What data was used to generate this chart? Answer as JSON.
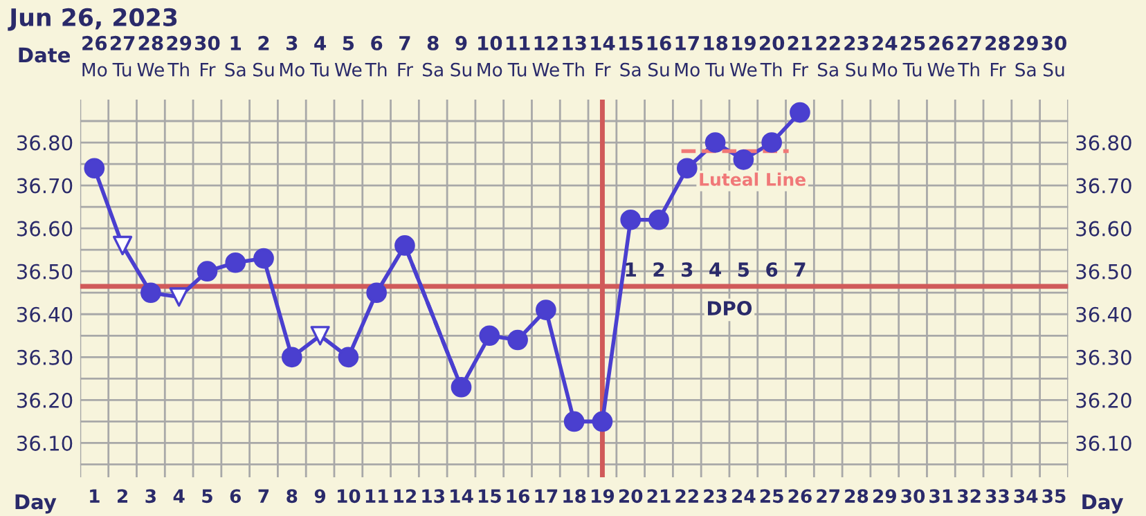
{
  "chart_data": {
    "type": "line",
    "title": "Jun 26, 2023",
    "xlabel": "Day",
    "x2label": "Date",
    "xlim": [
      0.5,
      35.5
    ],
    "xticks": [
      1,
      2,
      3,
      4,
      5,
      6,
      7,
      8,
      9,
      10,
      11,
      12,
      13,
      14,
      15,
      16,
      17,
      18,
      19,
      20,
      21,
      22,
      23,
      24,
      25,
      26,
      27,
      28,
      29,
      30,
      31,
      32,
      33,
      34,
      35
    ],
    "ylim": [
      36.02,
      36.9
    ],
    "yticks": [
      {
        "value": 36.05,
        "label": null
      },
      {
        "value": 36.1,
        "label": "36.10"
      },
      {
        "value": 36.15,
        "label": null
      },
      {
        "value": 36.2,
        "label": "36.20"
      },
      {
        "value": 36.25,
        "label": null
      },
      {
        "value": 36.3,
        "label": "36.30"
      },
      {
        "value": 36.35,
        "label": null
      },
      {
        "value": 36.4,
        "label": "36.40"
      },
      {
        "value": 36.45,
        "label": null
      },
      {
        "value": 36.5,
        "label": "36.50"
      },
      {
        "value": 36.55,
        "label": null
      },
      {
        "value": 36.6,
        "label": "36.60"
      },
      {
        "value": 36.65,
        "label": null
      },
      {
        "value": 36.7,
        "label": "36.70"
      },
      {
        "value": 36.75,
        "label": null
      },
      {
        "value": 36.8,
        "label": "36.80"
      },
      {
        "value": 36.85,
        "label": null
      }
    ],
    "y2lim": [
      36.02,
      36.9
    ],
    "y2ticks": [
      {
        "value": 36.1,
        "label": "36.10"
      },
      {
        "value": 36.2,
        "label": "36.20"
      },
      {
        "value": 36.3,
        "label": "36.30"
      },
      {
        "value": 36.4,
        "label": "36.40"
      },
      {
        "value": 36.5,
        "label": "36.50"
      },
      {
        "value": 36.6,
        "label": "36.60"
      },
      {
        "value": 36.7,
        "label": "36.70"
      },
      {
        "value": 36.8,
        "label": "36.80"
      }
    ],
    "grid": true,
    "series": [
      {
        "marker": "none",
        "line_style": "solid",
        "color": "#4a3fcf",
        "x": [
          1,
          2,
          3,
          4,
          5,
          6,
          7,
          8,
          9,
          10,
          11,
          12,
          13,
          14,
          15,
          16,
          17,
          18,
          19,
          20,
          21,
          22,
          23,
          24,
          25,
          26
        ],
        "values": [
          36.74,
          36.56,
          36.45,
          36.44,
          36.5,
          36.52,
          36.53,
          36.3,
          36.35,
          36.3,
          36.45,
          36.56,
          null,
          36.23,
          36.35,
          36.34,
          36.41,
          36.15,
          36.15,
          36.62,
          36.62,
          36.74,
          36.8,
          36.76,
          36.8,
          36.87
        ]
      },
      {
        "marker": "none",
        "line_style": "dashed",
        "color": "#4a3fcf",
        "x": [
          12,
          14
        ],
        "values": [
          36.56,
          36.23
        ]
      },
      {
        "type": "scatter",
        "marker": "circle",
        "color": "#4a3fcf",
        "x": [
          1,
          3,
          5,
          6,
          7,
          8,
          10,
          11,
          12,
          14,
          15,
          16,
          17,
          18,
          19,
          20,
          21,
          22,
          23,
          24,
          25,
          26
        ],
        "values": [
          36.74,
          36.45,
          36.5,
          36.52,
          36.53,
          36.3,
          36.3,
          36.45,
          36.56,
          36.23,
          36.35,
          36.34,
          36.41,
          36.15,
          36.15,
          36.62,
          36.62,
          36.74,
          36.8,
          36.76,
          36.8,
          36.87
        ]
      },
      {
        "type": "scatter",
        "marker": "triangle",
        "color": "#4a3fcf",
        "x": [
          2,
          4,
          9
        ],
        "values": [
          36.56,
          36.44,
          36.35
        ]
      },
      {
        "name": "Luteal Line",
        "marker": "none",
        "line_style": "dashed",
        "color": "#f07878",
        "x": [
          21.8,
          25.6
        ],
        "values": [
          36.78,
          36.78
        ]
      }
    ],
    "ref_lines": [
      {
        "axis": "y",
        "value": 36.465,
        "color": "#d05a5a",
        "line_style": "solid"
      },
      {
        "axis": "x",
        "value": 19,
        "color": "#d05a5a",
        "line_style": "solid"
      }
    ],
    "annotations": [
      "26\nMo",
      "27\nTu",
      "28\nWe",
      "29\nTh",
      "30\nFr",
      "1\nSa",
      "2\nSu",
      "3\nMo",
      "4\nTu",
      "5\nWe",
      "6\nTh",
      "7\nFr",
      "8\nSa",
      "9\nSu",
      "10\nMo",
      "11\nTu",
      "12\nWe",
      "13\nTh",
      "14\nFr",
      "15\nSa",
      "16\nSu",
      "17\nMo",
      "18\nTu",
      "19\nWe",
      "20\nTh",
      "21\nFr",
      "22\nSa",
      "23\nSu",
      "24\nMo",
      "25\nTu",
      "26\nWe",
      "27\nTh",
      "28\nFr",
      "29\nSa",
      "30\nSu",
      "1",
      "2",
      "3",
      "4",
      "5",
      "6",
      "7",
      "DPO"
    ]
  }
}
